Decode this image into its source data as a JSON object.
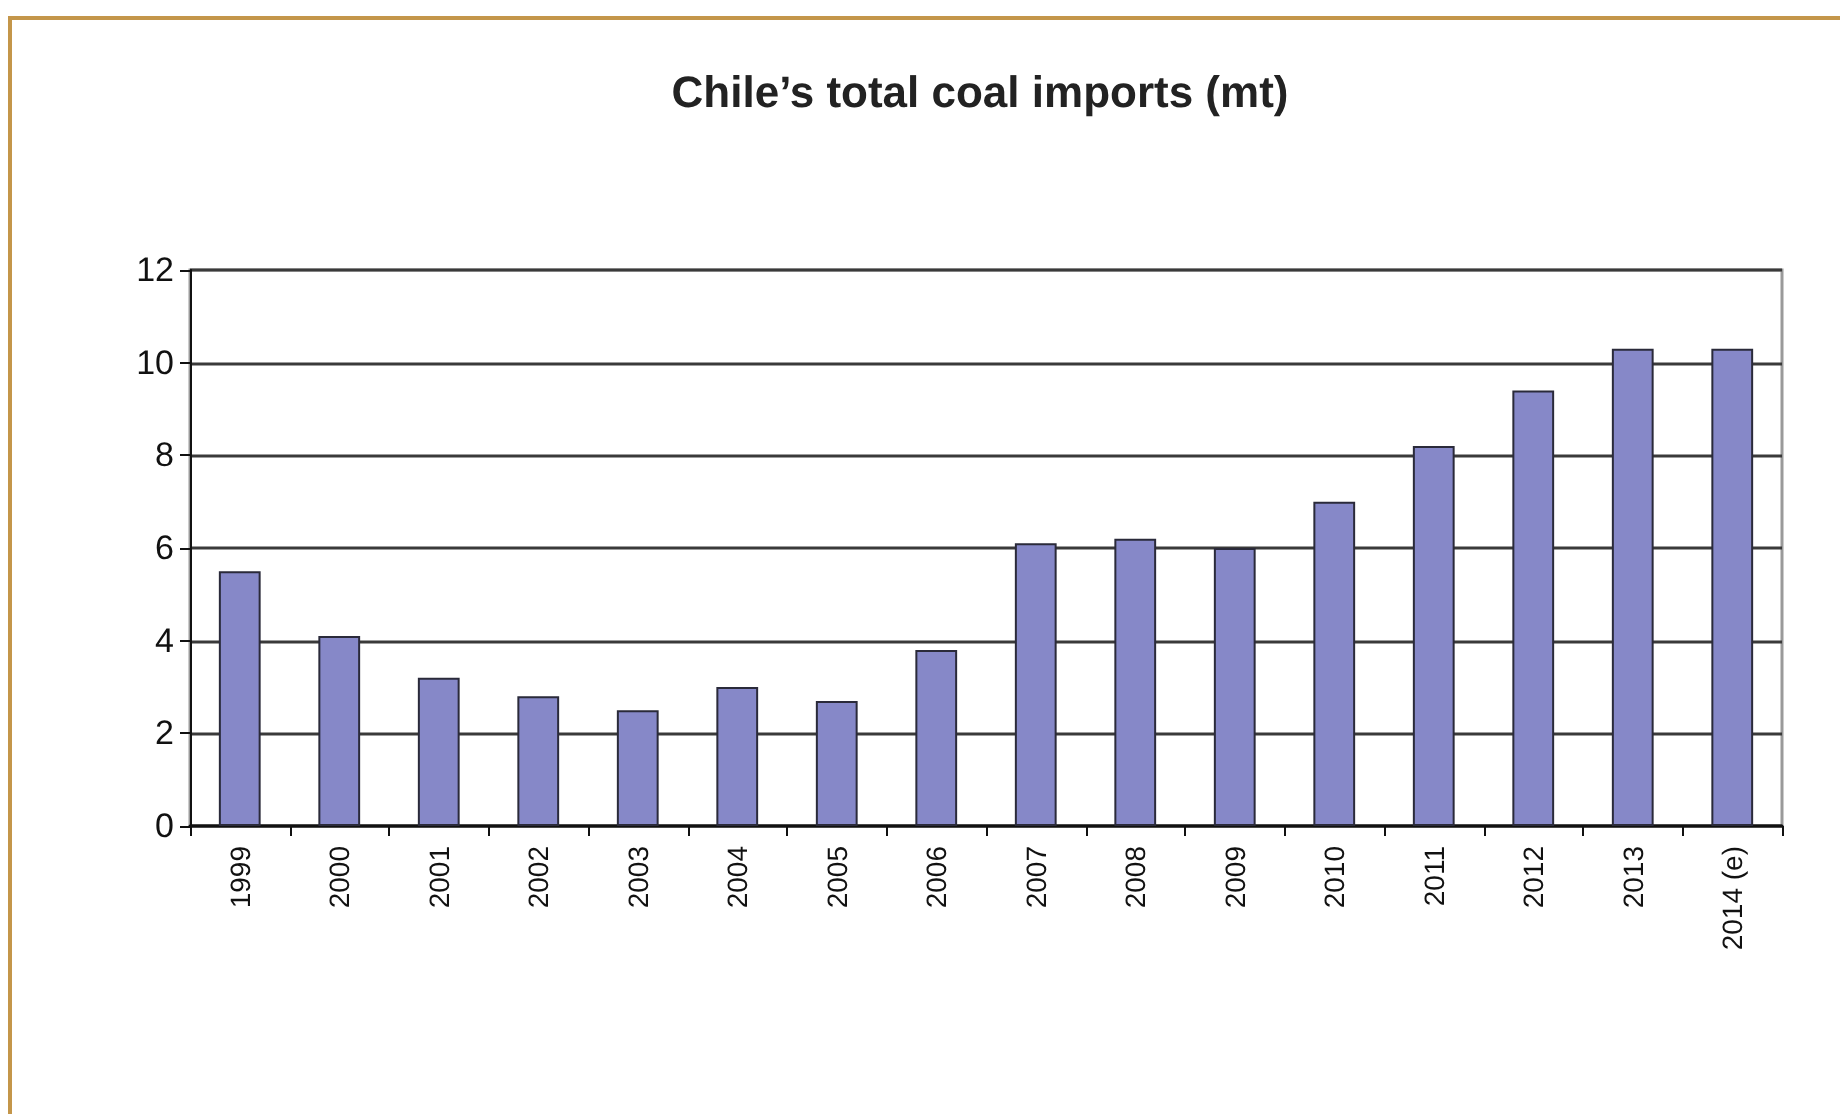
{
  "chart_data": {
    "type": "bar",
    "title": "Chile’s total coal imports (mt)",
    "categories": [
      "1999",
      "2000",
      "2001",
      "2002",
      "2003",
      "2004",
      "2005",
      "2006",
      "2007",
      "2008",
      "2009",
      "2010",
      "2011",
      "2012",
      "2013",
      "2014 (e)"
    ],
    "values": [
      5.5,
      4.1,
      3.2,
      2.8,
      2.5,
      3.0,
      2.7,
      3.8,
      6.1,
      6.2,
      6.0,
      7.0,
      8.2,
      9.4,
      10.3,
      10.3
    ],
    "color": "#8688c8",
    "ylim": [
      0,
      12
    ],
    "yticks": [
      0,
      2,
      4,
      6,
      8,
      10,
      12
    ],
    "grid": "y"
  }
}
